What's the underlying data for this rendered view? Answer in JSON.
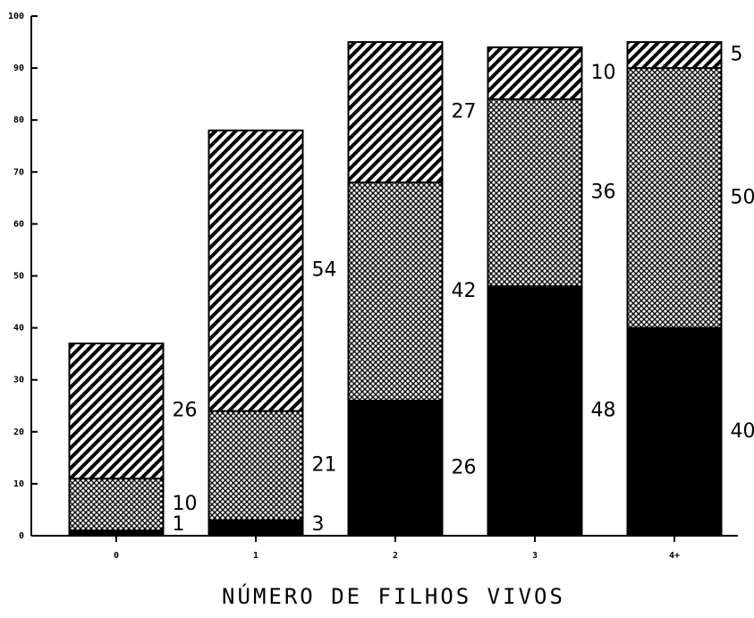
{
  "chart_data": {
    "type": "stacked_bar",
    "x_label": "NÚMERO DE FILHOS VIVOS",
    "categories": [
      "0",
      "1",
      "2",
      "3",
      "4+"
    ],
    "series": [
      {
        "color": "#000000",
        "pattern": "solid",
        "values": [
          1,
          3,
          26,
          48,
          40
        ]
      },
      {
        "color": "#000000",
        "pattern": "crosshatch",
        "values": [
          10,
          21,
          42,
          36,
          50
        ]
      },
      {
        "color": "#000000",
        "pattern": "diagonal",
        "values": [
          26,
          54,
          27,
          10,
          5
        ]
      }
    ],
    "ylim": [
      0,
      100
    ],
    "yticks": [
      0,
      10,
      20,
      30,
      40,
      50,
      60,
      70,
      80,
      90,
      100
    ],
    "grid": false
  }
}
